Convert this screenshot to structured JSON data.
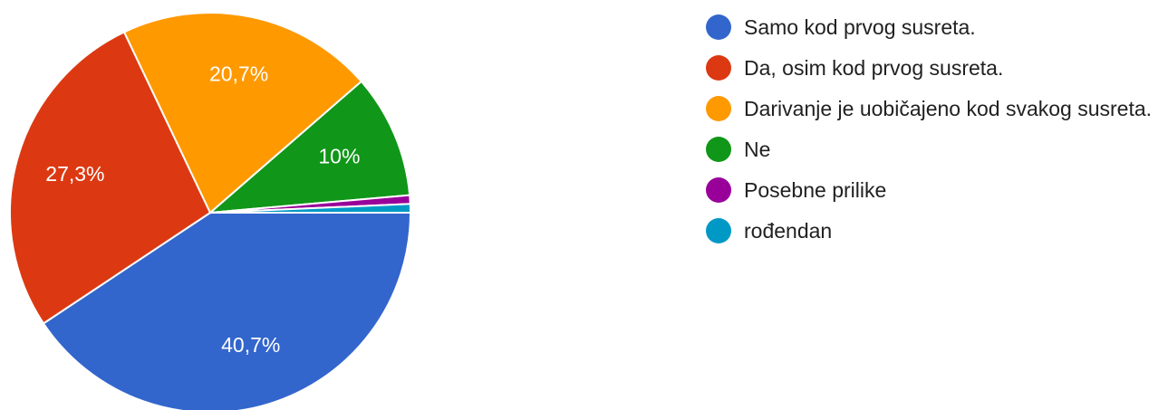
{
  "chart_data": {
    "type": "pie",
    "categories": [
      "Samo kod prvog susreta.",
      "Da, osim kod prvog susreta.",
      "Darivanje je uobičajeno kod svakog susreta.",
      "Ne",
      "Posebne prilike",
      "rođendan"
    ],
    "values": [
      40.7,
      27.3,
      20.7,
      10,
      0.7,
      0.7
    ],
    "value_labels": [
      "40,7%",
      "27,3%",
      "20,7%",
      "10%",
      null,
      null
    ],
    "colors": [
      "#3366cc",
      "#dc3912",
      "#ff9900",
      "#109618",
      "#990099",
      "#0099c6"
    ]
  }
}
